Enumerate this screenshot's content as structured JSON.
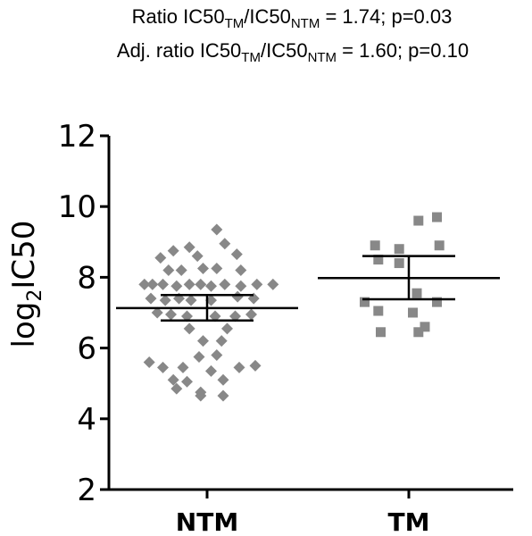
{
  "header": {
    "line1": {
      "pre": "Ratio IC50",
      "sub1": "TM",
      "mid": "/IC50",
      "sub2": "NTM",
      "post": " = 1.74; p=0.03"
    },
    "line2": {
      "pre": "Adj. ratio IC50",
      "sub1": "TM",
      "mid": "/IC50",
      "sub2": "NTM",
      "post": " = 1.60; p=0.10"
    }
  },
  "chart_data": {
    "type": "scatter",
    "ylabel": {
      "pre": "log",
      "sub": "2",
      "post": "IC50"
    },
    "ylim": [
      2,
      12
    ],
    "yticks": [
      2,
      4,
      6,
      8,
      10,
      12
    ],
    "categories": [
      "NTM",
      "TM"
    ],
    "grid": false,
    "colors": {
      "marker": "#888888",
      "axis": "#000000"
    },
    "series": [
      {
        "name": "NTM",
        "marker": "diamond",
        "mean": 7.13,
        "ci": [
          6.78,
          7.5
        ],
        "points": [
          [
            0.12,
            9.35
          ],
          [
            -0.42,
            8.75
          ],
          [
            -0.22,
            8.85
          ],
          [
            0.22,
            8.95
          ],
          [
            -0.58,
            8.55
          ],
          [
            -0.12,
            8.6
          ],
          [
            0.37,
            8.65
          ],
          [
            -0.48,
            8.2
          ],
          [
            -0.32,
            8.2
          ],
          [
            -0.05,
            8.25
          ],
          [
            0.12,
            8.25
          ],
          [
            0.42,
            8.2
          ],
          [
            -0.78,
            7.8
          ],
          [
            -0.68,
            7.8
          ],
          [
            -0.55,
            7.8
          ],
          [
            -0.38,
            7.75
          ],
          [
            -0.22,
            7.8
          ],
          [
            -0.08,
            7.8
          ],
          [
            0.05,
            7.75
          ],
          [
            0.22,
            7.8
          ],
          [
            0.42,
            7.75
          ],
          [
            0.62,
            7.8
          ],
          [
            0.82,
            7.8
          ],
          [
            -0.7,
            7.4
          ],
          [
            -0.52,
            7.35
          ],
          [
            -0.35,
            7.4
          ],
          [
            -0.2,
            7.35
          ],
          [
            0.05,
            7.35
          ],
          [
            0.38,
            7.45
          ],
          [
            0.58,
            7.4
          ],
          [
            -0.62,
            7.0
          ],
          [
            -0.45,
            6.95
          ],
          [
            -0.25,
            6.9
          ],
          [
            0.1,
            6.9
          ],
          [
            0.35,
            6.9
          ],
          [
            0.55,
            6.95
          ],
          [
            -0.22,
            6.55
          ],
          [
            0.25,
            6.55
          ],
          [
            -0.05,
            6.2
          ],
          [
            0.18,
            6.2
          ],
          [
            -0.1,
            5.75
          ],
          [
            0.12,
            5.8
          ],
          [
            -0.72,
            5.6
          ],
          [
            -0.55,
            5.45
          ],
          [
            -0.3,
            5.45
          ],
          [
            0.05,
            5.35
          ],
          [
            0.4,
            5.45
          ],
          [
            0.6,
            5.5
          ],
          [
            -0.42,
            5.1
          ],
          [
            -0.25,
            5.05
          ],
          [
            0.2,
            5.1
          ],
          [
            -0.38,
            4.85
          ],
          [
            -0.08,
            4.75
          ],
          [
            -0.08,
            4.65
          ],
          [
            0.2,
            4.65
          ]
        ]
      },
      {
        "name": "TM",
        "marker": "square",
        "mean": 7.98,
        "ci": [
          7.38,
          8.6
        ],
        "points": [
          [
            0.35,
            9.7
          ],
          [
            0.12,
            9.6
          ],
          [
            -0.42,
            8.9
          ],
          [
            -0.12,
            8.8
          ],
          [
            0.38,
            8.9
          ],
          [
            -0.38,
            8.5
          ],
          [
            -0.12,
            8.4
          ],
          [
            0.1,
            7.55
          ],
          [
            -0.55,
            7.3
          ],
          [
            0.35,
            7.3
          ],
          [
            -0.38,
            7.05
          ],
          [
            0.05,
            7.0
          ],
          [
            0.2,
            6.6
          ],
          [
            -0.35,
            6.45
          ],
          [
            0.12,
            6.45
          ]
        ]
      }
    ]
  }
}
